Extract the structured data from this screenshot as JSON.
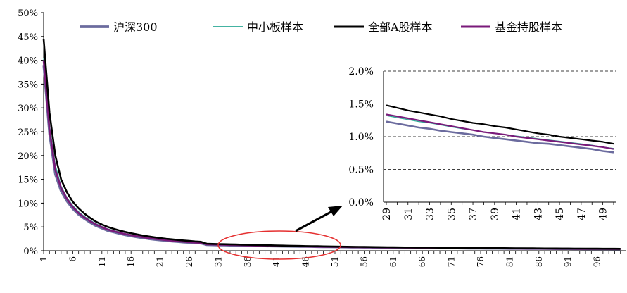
{
  "chart_data": [
    {
      "id": "main",
      "type": "line",
      "x_start": 1,
      "x_end": 100,
      "x_tick_labels": [
        "1",
        "6",
        "11",
        "16",
        "21",
        "26",
        "31",
        "36",
        "41",
        "46",
        "51",
        "56",
        "61",
        "66",
        "71",
        "76",
        "81",
        "86",
        "91",
        "96"
      ],
      "y_tick_labels": [
        "0%",
        "5%",
        "10%",
        "15%",
        "20%",
        "25%",
        "30%",
        "35%",
        "40%",
        "45%",
        "50%"
      ],
      "ylim": [
        0,
        50
      ],
      "y_unit": "%",
      "grid": false,
      "legend_position": "top",
      "series": [
        {
          "name": "沪深300",
          "color": "#6b6b9e",
          "values": [
            39.0,
            24.5,
            16.0,
            12.5,
            10.4,
            8.8,
            7.6,
            6.7,
            5.9,
            5.2,
            4.7,
            4.2,
            3.9,
            3.6,
            3.3,
            3.08,
            2.86,
            2.68,
            2.5,
            2.35,
            2.22,
            2.1,
            1.98,
            1.88,
            1.78,
            1.7,
            1.62,
            1.55,
            1.23,
            1.2,
            1.17,
            1.15,
            1.12,
            1.1,
            1.08,
            1.05,
            1.03,
            1.0,
            0.98,
            0.96,
            0.94,
            0.92,
            0.9,
            0.89,
            0.87,
            0.86,
            0.84,
            0.82,
            0.8,
            0.78,
            0.77,
            0.75,
            0.74,
            0.72,
            0.71,
            0.7,
            0.69,
            0.67,
            0.66,
            0.65,
            0.64,
            0.63,
            0.62,
            0.61,
            0.6,
            0.59,
            0.58,
            0.57,
            0.56,
            0.55,
            0.54,
            0.53,
            0.52,
            0.51,
            0.5,
            0.49,
            0.48,
            0.48,
            0.47,
            0.46,
            0.45,
            0.44,
            0.44,
            0.43,
            0.42,
            0.41,
            0.41,
            0.4,
            0.39,
            0.39,
            0.38,
            0.37,
            0.37,
            0.36,
            0.36,
            0.35,
            0.34,
            0.34,
            0.33,
            0.33
          ]
        },
        {
          "name": "中小板样本",
          "color": "#2aa894",
          "values": [
            40.5,
            26.5,
            18.0,
            13.6,
            11.2,
            9.5,
            8.2,
            7.2,
            6.4,
            5.7,
            5.1,
            4.6,
            4.25,
            3.9,
            3.6,
            3.35,
            3.12,
            2.92,
            2.74,
            2.58,
            2.43,
            2.3,
            2.18,
            2.06,
            1.96,
            1.86,
            1.77,
            1.69,
            1.33,
            1.3,
            1.27,
            1.24,
            1.21,
            1.18,
            1.15,
            1.12,
            1.09,
            1.06,
            1.04,
            1.02,
            1.0,
            0.98,
            0.96,
            0.94,
            0.92,
            0.9,
            0.88,
            0.86,
            0.84,
            0.82,
            0.81,
            0.79,
            0.78,
            0.76,
            0.75,
            0.73,
            0.72,
            0.71,
            0.7,
            0.68,
            0.67,
            0.66,
            0.65,
            0.64,
            0.63,
            0.62,
            0.61,
            0.6,
            0.59,
            0.58,
            0.57,
            0.56,
            0.55,
            0.54,
            0.53,
            0.52,
            0.51,
            0.5,
            0.5,
            0.49,
            0.48,
            0.47,
            0.46,
            0.46,
            0.45,
            0.44,
            0.43,
            0.43,
            0.42,
            0.41,
            0.41,
            0.4,
            0.39,
            0.39,
            0.38,
            0.38,
            0.37,
            0.36,
            0.36,
            0.35
          ]
        },
        {
          "name": "全部A股样本",
          "color": "#000000",
          "values": [
            44.5,
            29.0,
            20.0,
            15.0,
            12.3,
            10.3,
            8.9,
            7.8,
            6.9,
            6.1,
            5.5,
            5.0,
            4.6,
            4.25,
            3.95,
            3.68,
            3.43,
            3.2,
            3.0,
            2.82,
            2.66,
            2.52,
            2.39,
            2.27,
            2.16,
            2.06,
            1.96,
            1.88,
            1.48,
            1.44,
            1.4,
            1.37,
            1.34,
            1.31,
            1.27,
            1.24,
            1.21,
            1.19,
            1.16,
            1.14,
            1.11,
            1.08,
            1.05,
            1.03,
            1.0,
            0.98,
            0.96,
            0.94,
            0.92,
            0.9,
            0.88,
            0.86,
            0.84,
            0.83,
            0.81,
            0.8,
            0.78,
            0.77,
            0.75,
            0.74,
            0.73,
            0.71,
            0.7,
            0.69,
            0.68,
            0.67,
            0.66,
            0.65,
            0.64,
            0.63,
            0.62,
            0.61,
            0.6,
            0.59,
            0.58,
            0.57,
            0.56,
            0.55,
            0.55,
            0.54,
            0.53,
            0.52,
            0.51,
            0.51,
            0.5,
            0.49,
            0.48,
            0.48,
            0.47,
            0.46,
            0.46,
            0.45,
            0.44,
            0.44,
            0.43,
            0.43,
            0.42,
            0.41,
            0.41,
            0.4
          ]
        },
        {
          "name": "基金持股样本",
          "color": "#7a1a7a",
          "values": [
            40.0,
            25.5,
            17.0,
            13.2,
            10.9,
            9.2,
            7.9,
            7.0,
            6.2,
            5.5,
            4.95,
            4.45,
            4.1,
            3.78,
            3.5,
            3.25,
            3.03,
            2.84,
            2.66,
            2.5,
            2.36,
            2.23,
            2.11,
            2.0,
            1.9,
            1.81,
            1.72,
            1.65,
            1.34,
            1.31,
            1.28,
            1.25,
            1.22,
            1.19,
            1.16,
            1.13,
            1.1,
            1.07,
            1.05,
            1.03,
            1.0,
            0.98,
            0.96,
            0.94,
            0.92,
            0.9,
            0.88,
            0.86,
            0.84,
            0.82,
            0.81,
            0.79,
            0.78,
            0.76,
            0.75,
            0.73,
            0.72,
            0.71,
            0.69,
            0.68,
            0.67,
            0.66,
            0.65,
            0.64,
            0.63,
            0.62,
            0.61,
            0.6,
            0.59,
            0.58,
            0.57,
            0.56,
            0.55,
            0.54,
            0.53,
            0.52,
            0.51,
            0.5,
            0.5,
            0.49,
            0.48,
            0.47,
            0.46,
            0.46,
            0.45,
            0.44,
            0.43,
            0.43,
            0.42,
            0.41,
            0.41,
            0.4,
            0.39,
            0.39,
            0.38,
            0.38,
            0.37,
            0.36,
            0.36,
            0.35
          ]
        }
      ],
      "annotations": [
        "ellipse around x≈31–51 with arrow pointing to inset"
      ]
    },
    {
      "id": "inset",
      "type": "line",
      "x": [
        29,
        30,
        31,
        32,
        33,
        34,
        35,
        36,
        37,
        38,
        39,
        40,
        41,
        42,
        43,
        44,
        45,
        46,
        47,
        48,
        49,
        50
      ],
      "x_tick_labels": [
        "29",
        "31",
        "33",
        "35",
        "37",
        "39",
        "41",
        "43",
        "45",
        "47",
        "49"
      ],
      "y_tick_labels": [
        "0.0%",
        "0.5%",
        "1.0%",
        "1.5%",
        "2.0%"
      ],
      "ylim": [
        0,
        2.0
      ],
      "grid": "dashed horizontal",
      "series": [
        {
          "name": "沪深300",
          "color": "#6b6b9e",
          "values": [
            1.23,
            1.2,
            1.17,
            1.14,
            1.12,
            1.09,
            1.07,
            1.05,
            1.03,
            1.0,
            0.98,
            0.96,
            0.94,
            0.92,
            0.9,
            0.89,
            0.87,
            0.85,
            0.83,
            0.81,
            0.78,
            0.76
          ]
        },
        {
          "name": "中小板样本",
          "color": "#2aa894",
          "values": [
            1.32,
            1.29,
            1.26,
            1.23,
            1.21,
            1.18,
            1.15,
            1.12,
            1.1,
            1.07,
            1.05,
            1.03,
            1.01,
            0.99,
            0.97,
            0.95,
            0.93,
            0.91,
            0.89,
            0.87,
            0.84,
            0.82
          ]
        },
        {
          "name": "全部A股样本",
          "color": "#000000",
          "values": [
            1.48,
            1.44,
            1.4,
            1.37,
            1.34,
            1.31,
            1.27,
            1.24,
            1.21,
            1.19,
            1.16,
            1.14,
            1.11,
            1.08,
            1.05,
            1.03,
            1.0,
            0.98,
            0.96,
            0.94,
            0.92,
            0.89
          ]
        },
        {
          "name": "基金持股样本",
          "color": "#7a1a7a",
          "values": [
            1.34,
            1.31,
            1.28,
            1.25,
            1.22,
            1.19,
            1.16,
            1.13,
            1.1,
            1.07,
            1.05,
            1.03,
            1.0,
            0.98,
            0.96,
            0.94,
            0.92,
            0.9,
            0.88,
            0.86,
            0.84,
            0.81
          ]
        }
      ]
    }
  ]
}
